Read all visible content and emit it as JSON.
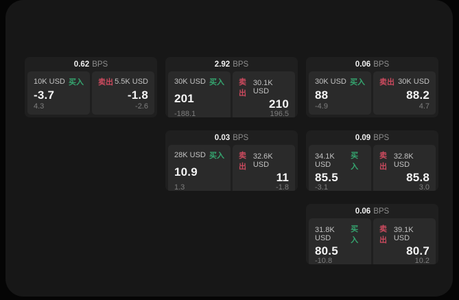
{
  "colors": {
    "buy": "#35a56f",
    "sell": "#cb4a5e",
    "panel": "#171717",
    "card": "#1f1f1f",
    "tile": "#2a2a2a"
  },
  "cards": [
    {
      "spread": "0.62",
      "unit": "BPS",
      "buy": {
        "amount": "10K USD",
        "label": "买入",
        "price": "-3.7",
        "change": "4.3"
      },
      "sell": {
        "label": "卖出",
        "amount": "5.5K USD",
        "price": "-1.8",
        "change": "-2.6"
      }
    },
    {
      "spread": "2.92",
      "unit": "BPS",
      "buy": {
        "amount": "30K USD",
        "label": "买入",
        "price": "201",
        "change": "-188.1"
      },
      "sell": {
        "label": "卖出",
        "amount": "30.1K USD",
        "price": "210",
        "change": "196.5"
      }
    },
    {
      "spread": "0.06",
      "unit": "BPS",
      "buy": {
        "amount": "30K USD",
        "label": "买入",
        "price": "88",
        "change": "-4.9"
      },
      "sell": {
        "label": "卖出",
        "amount": "30K USD",
        "price": "88.2",
        "change": "4.7"
      }
    },
    {
      "spread": "0.03",
      "unit": "BPS",
      "buy": {
        "amount": "28K USD",
        "label": "买入",
        "price": "10.9",
        "change": "1.3"
      },
      "sell": {
        "label": "卖出",
        "amount": "32.6K USD",
        "price": "11",
        "change": "-1.8"
      }
    },
    {
      "spread": "0.09",
      "unit": "BPS",
      "buy": {
        "amount": "34.1K USD",
        "label": "买入",
        "price": "85.5",
        "change": "-3.1"
      },
      "sell": {
        "label": "卖出",
        "amount": "32.8K USD",
        "price": "85.8",
        "change": "3.0"
      }
    },
    {
      "spread": "0.06",
      "unit": "BPS",
      "buy": {
        "amount": "31.8K USD",
        "label": "买入",
        "price": "80.5",
        "change": "-10.8"
      },
      "sell": {
        "label": "卖出",
        "amount": "39.1K USD",
        "price": "80.7",
        "change": "10.2"
      }
    }
  ]
}
